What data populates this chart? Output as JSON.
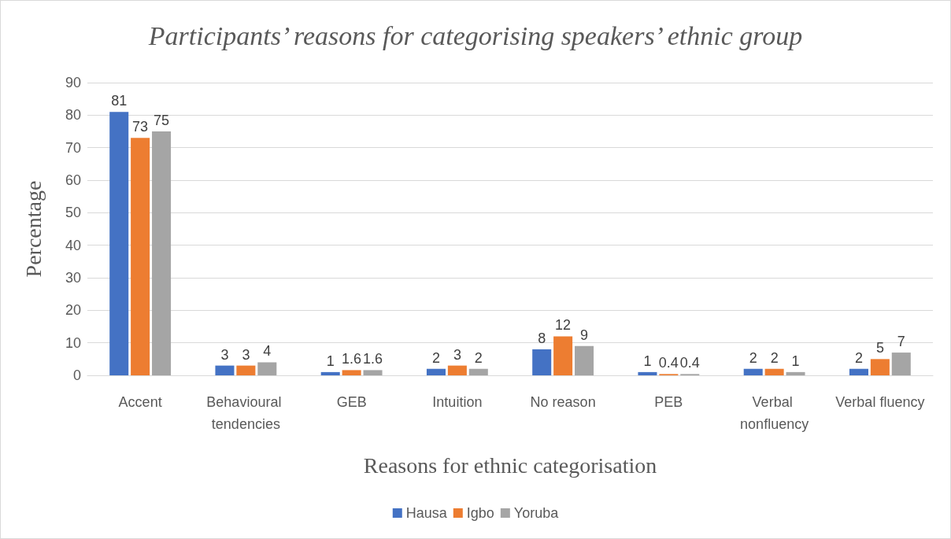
{
  "chart_data": {
    "type": "bar",
    "title": "Participants’ reasons for categorising speakers’ ethnic group",
    "xlabel": "Reasons for ethnic categorisation",
    "ylabel": "Percentage",
    "categories": [
      "Accent",
      "Behavioural tendencies",
      "GEB",
      "Intuition",
      "No reason",
      "PEB",
      "Verbal nonfluency",
      "Verbal fluency"
    ],
    "series": [
      {
        "name": "Hausa",
        "color": "#4472c4",
        "values": [
          81,
          3,
          1,
          2,
          8,
          1,
          2,
          2
        ]
      },
      {
        "name": "Igbo",
        "color": "#ed7d31",
        "values": [
          73,
          3,
          1.6,
          3,
          12,
          0.4,
          2,
          5
        ]
      },
      {
        "name": "Yoruba",
        "color": "#a5a5a5",
        "values": [
          75,
          4,
          1.6,
          2,
          9,
          0.4,
          1,
          7
        ]
      }
    ],
    "ylim": [
      0,
      90
    ],
    "yticks": [
      0,
      10,
      20,
      30,
      40,
      50,
      60,
      70,
      80,
      90
    ],
    "grid": "y",
    "legend": "bottom",
    "data_labels": true
  }
}
